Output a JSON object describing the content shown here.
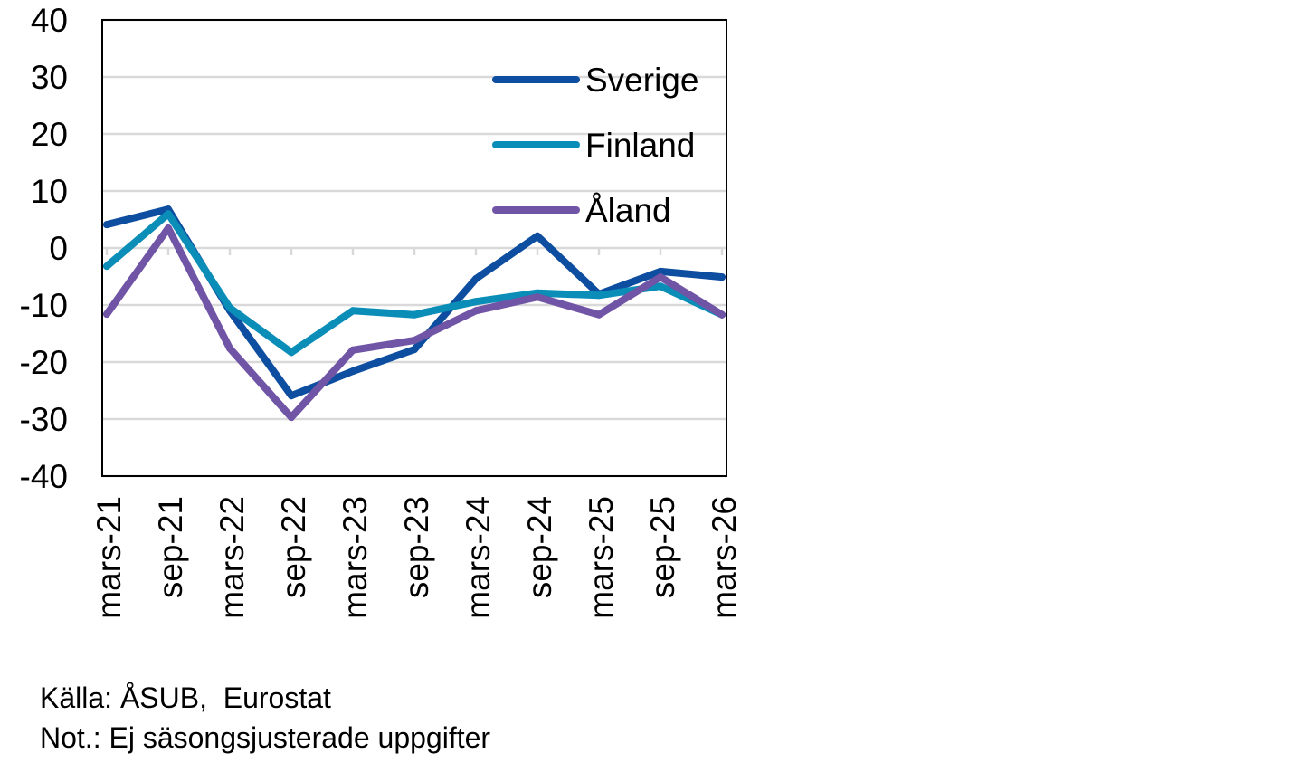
{
  "chart_data": {
    "type": "line",
    "categories": [
      "mars-21",
      "sep-21",
      "mars-22",
      "sep-22",
      "mars-23",
      "sep-23",
      "mars-24",
      "sep-24",
      "mars-25",
      "sep-25",
      "mars-26"
    ],
    "series": [
      {
        "name": "Sverige",
        "color": "#0E4EA0",
        "values": [
          4.1,
          6.8,
          -11.0,
          -25.9,
          -21.6,
          -17.8,
          -5.4,
          2.1,
          -8.1,
          -4.1,
          -5.1
        ]
      },
      {
        "name": "Finland",
        "color": "#0A8EB8",
        "values": [
          -3.2,
          6.0,
          -10.5,
          -18.3,
          -11.0,
          -11.7,
          -9.4,
          -7.9,
          -8.3,
          -6.7,
          -11.7
        ]
      },
      {
        "name": "Åland",
        "color": "#7054A6",
        "values": [
          -11.6,
          3.5,
          -17.6,
          -29.7,
          -17.9,
          -16.2,
          -11.0,
          -8.6,
          -11.7,
          -5.1,
          -11.7
        ]
      }
    ],
    "ylim": [
      -40,
      40
    ],
    "yticks": [
      40,
      30,
      20,
      10,
      0,
      -10,
      -20,
      -30,
      -40
    ],
    "grid": true,
    "legend": "top-right"
  },
  "footer": {
    "source": "Källa: ÅSUB,  Eurostat",
    "note": "Not.: Ej säsongsjusterade uppgifter"
  }
}
